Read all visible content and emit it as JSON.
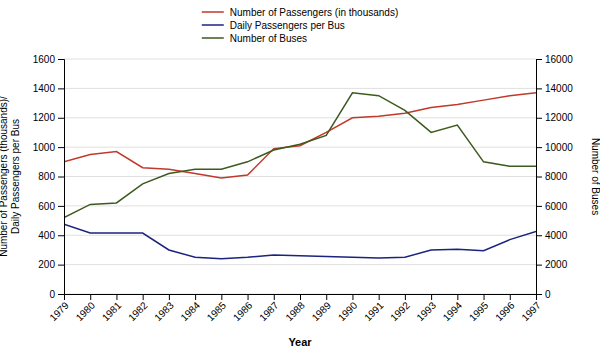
{
  "chart_data": {
    "type": "line",
    "xlabel": "Year",
    "ylabel": "Number of Passengers (thousands)/\nDaily Passengers per Bus",
    "y2label": "Number of Buses",
    "x": [
      1979,
      1980,
      1981,
      1982,
      1983,
      1984,
      1985,
      1986,
      1987,
      1988,
      1989,
      1990,
      1991,
      1992,
      1993,
      1994,
      1995,
      1996,
      1997
    ],
    "xlim": [
      1979,
      1997
    ],
    "xticks": [
      1979,
      1980,
      1981,
      1982,
      1983,
      1984,
      1985,
      1986,
      1987,
      1988,
      1989,
      1990,
      1991,
      1992,
      1993,
      1994,
      1995,
      1996,
      1997
    ],
    "ylim": [
      0,
      1600
    ],
    "yticks": [
      0,
      200,
      400,
      600,
      800,
      1000,
      1200,
      1400,
      1600
    ],
    "y2lim": [
      0,
      16000
    ],
    "y2ticks": [
      0,
      2000,
      4000,
      6000,
      8000,
      10000,
      12000,
      14000,
      16000
    ],
    "grid": true,
    "legend": "top",
    "series": [
      {
        "name": "Number of Passengers (in thousands)",
        "color": "#c0392b",
        "values": [
          900,
          950,
          970,
          860,
          850,
          820,
          790,
          810,
          990,
          1010,
          1100,
          1200,
          1210,
          1230,
          1270,
          1290,
          1320,
          1350,
          1370
        ]
      },
      {
        "name": "Daily Passengers per Bus",
        "color": "#1a237e",
        "values": [
          475,
          415,
          415,
          415,
          300,
          250,
          240,
          250,
          265,
          260,
          255,
          250,
          245,
          250,
          300,
          305,
          295,
          370,
          425
        ]
      },
      {
        "name": "Number of Buses",
        "color": "#3d5a1e",
        "axis": "y2",
        "values": [
          5200,
          6100,
          6200,
          7500,
          8200,
          8500,
          8500,
          9000,
          9800,
          10200,
          10800,
          13700,
          13500,
          12500,
          11000,
          11500,
          9000,
          8700,
          8700
        ]
      }
    ]
  }
}
